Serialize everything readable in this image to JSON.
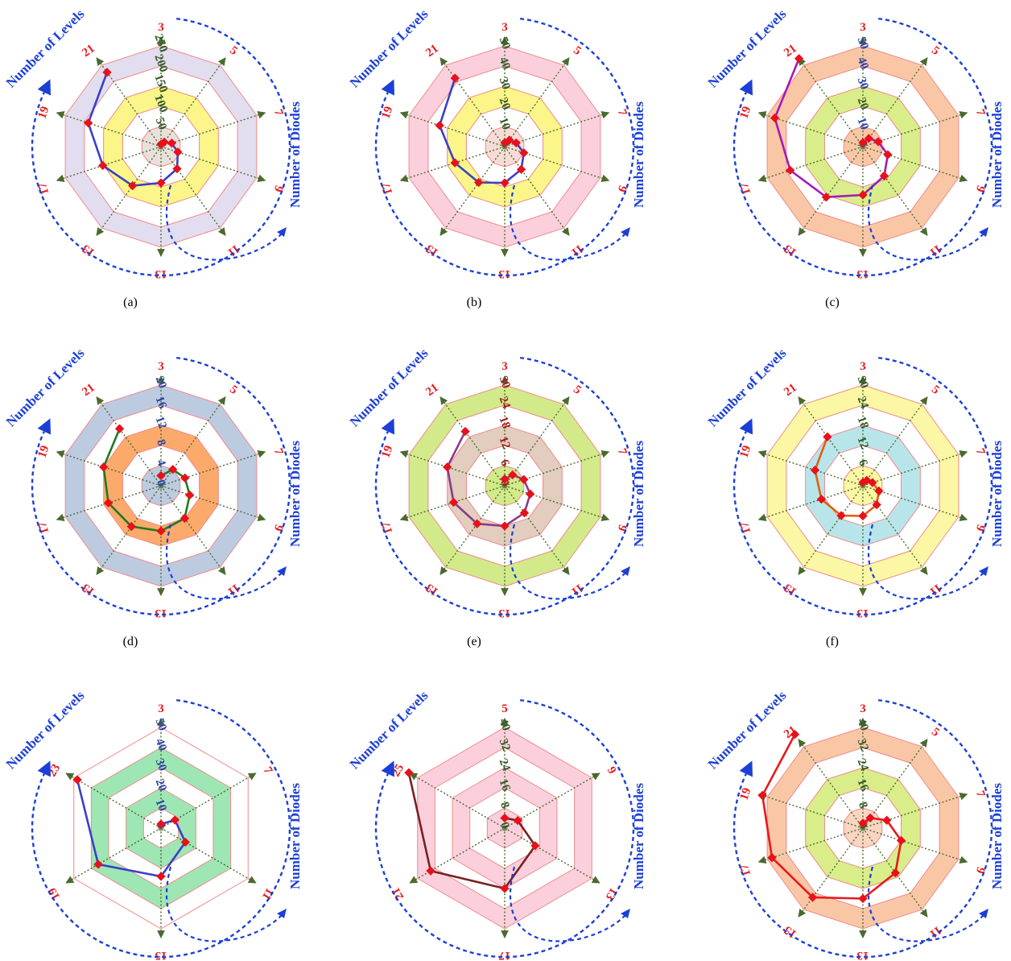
{
  "annotations": {
    "levels_label": "Number of Levels",
    "diodes_label": "Number of Diodes"
  },
  "chart_data": [
    {
      "type": "radar",
      "caption": "(a)",
      "categories": [
        "3",
        "5",
        "7",
        "9",
        "11",
        "13",
        "15",
        "17",
        "19",
        "21"
      ],
      "values": [
        6,
        14,
        28,
        44,
        68,
        90,
        120,
        152,
        190,
        228
      ],
      "ticks": [
        "0",
        "50",
        "100",
        "150",
        "200",
        "250"
      ],
      "rmax": 250,
      "band_colors": [
        "#e9e0dc",
        "#ffffff",
        "#fbf58a",
        "#ffffff",
        "#e2ddef"
      ],
      "line_color": "#3b3fc7",
      "tick_colors": [
        "#355a2a"
      ]
    },
    {
      "type": "radar",
      "caption": "(b)",
      "categories": [
        "3",
        "5",
        "7",
        "9",
        "11",
        "13",
        "15",
        "17",
        "19",
        "21"
      ],
      "values": [
        2,
        4,
        6,
        10,
        14,
        18,
        22,
        26,
        34,
        42
      ],
      "ticks": [
        "0",
        "10",
        "20",
        "30",
        "40",
        "50"
      ],
      "rmax": 50,
      "band_colors": [
        "#f6dcd6",
        "#ffffff",
        "#fbf58a",
        "#ffffff",
        "#fbd0dc"
      ],
      "line_color": "#3b3fc7",
      "tick_colors": [
        "#355a2a"
      ]
    },
    {
      "type": "radar",
      "caption": "(c)",
      "categories": [
        "3",
        "5",
        "7",
        "9",
        "11",
        "13",
        "15",
        "17",
        "19",
        "21"
      ],
      "values": [
        2,
        5,
        8,
        13,
        18,
        24,
        31,
        38,
        46,
        54
      ],
      "ticks": [
        "0",
        "10",
        "20",
        "30",
        "40",
        "50"
      ],
      "rmax": 50,
      "band_colors": [
        "#f9c7a6",
        "#ffffff",
        "#d9ed8a",
        "#ffffff",
        "#f9c7a6"
      ],
      "line_color": "#a619b8",
      "tick_colors": [
        "#2c44a8",
        "#2c44a8",
        "#355a2a",
        "#2c44a8",
        "#2c44a8",
        "#2c44a8"
      ]
    },
    {
      "type": "radar",
      "caption": "(d)",
      "categories": [
        "3",
        "5",
        "7",
        "9",
        "11",
        "13",
        "15",
        "17",
        "19",
        "21"
      ],
      "values": [
        2,
        4,
        5,
        6,
        8,
        9,
        10,
        11,
        12,
        14
      ],
      "ticks": [
        "0",
        "4",
        "8",
        "12",
        "16",
        "20"
      ],
      "rmax": 20,
      "band_colors": [
        "#bccbe0",
        "#ffffff",
        "#fbaa6c",
        "#ffffff",
        "#bccbe0"
      ],
      "line_color": "#1f7a1f",
      "tick_colors": [
        "#2c44a8"
      ]
    },
    {
      "type": "radar",
      "caption": "(e)",
      "categories": [
        "3",
        "5",
        "7",
        "9",
        "11",
        "13",
        "15",
        "17",
        "19",
        "21"
      ],
      "values": [
        2,
        4,
        6,
        8,
        10,
        12,
        14,
        16,
        18,
        20
      ],
      "ticks": [
        "0",
        "6",
        "12",
        "18",
        "24",
        "30"
      ],
      "rmax": 30,
      "band_colors": [
        "#d2ea8a",
        "#ffffff",
        "#e2cdbf",
        "#ffffff",
        "#d2ea8a"
      ],
      "line_color": "#8a3a8a",
      "tick_colors": [
        "#a02020"
      ]
    },
    {
      "type": "radar",
      "caption": "(f)",
      "categories": [
        "3",
        "5",
        "7",
        "9",
        "11",
        "13",
        "15",
        "17",
        "19",
        "21"
      ],
      "values": [
        1,
        2,
        3,
        5,
        7,
        9,
        11,
        13,
        15,
        18
      ],
      "ticks": [
        "0",
        "6",
        "12",
        "18",
        "24",
        "30"
      ],
      "rmax": 30,
      "band_colors": [
        "#fbf7a4",
        "#ffffff",
        "#b8e5ea",
        "#ffffff",
        "#fbf7a4"
      ],
      "line_color": "#e06010",
      "tick_colors": [
        "#355a2a"
      ]
    },
    {
      "type": "radar",
      "caption": "(g)",
      "categories": [
        "3",
        "7",
        "11",
        "15",
        "19",
        "23"
      ],
      "values": [
        2,
        8,
        14,
        24,
        36,
        48
      ],
      "ticks": [
        "0",
        "10",
        "20",
        "30",
        "40",
        "50"
      ],
      "rmax": 50,
      "band_colors": [
        "#ffffff",
        "#9ee6b3",
        "#ffffff",
        "#9ee6b3",
        "#ffffff"
      ],
      "line_color": "#3b3fc7",
      "tick_colors": [
        "#2c44a8"
      ]
    },
    {
      "type": "radar",
      "caption": "(h)",
      "categories": [
        "5",
        "9",
        "13",
        "17",
        "21",
        "25"
      ],
      "values": [
        4,
        6,
        14,
        24,
        34,
        44
      ],
      "ticks": [
        "0",
        "8",
        "16",
        "24",
        "32",
        "40"
      ],
      "rmax": 40,
      "band_colors": [
        "#fbd0dc",
        "#ffffff",
        "#fbd0dc",
        "#ffffff",
        "#fbd0dc"
      ],
      "line_color": "#7a2020",
      "tick_colors": [
        "#355a2a"
      ]
    },
    {
      "type": "radar",
      "caption": "(i)",
      "categories": [
        "3",
        "5",
        "7",
        "9",
        "11",
        "13",
        "15",
        "17",
        "19",
        "21"
      ],
      "values": [
        2,
        5,
        10,
        16,
        22,
        28,
        34,
        38,
        42,
        46
      ],
      "ticks": [
        "0",
        "8",
        "16",
        "24",
        "32",
        "40"
      ],
      "rmax": 40,
      "band_colors": [
        "#f9d6c2",
        "#ffffff",
        "#d9ed8a",
        "#ffffff",
        "#f9c7a6"
      ],
      "line_color": "#e8181c",
      "tick_colors": [
        "#355a2a"
      ]
    }
  ]
}
